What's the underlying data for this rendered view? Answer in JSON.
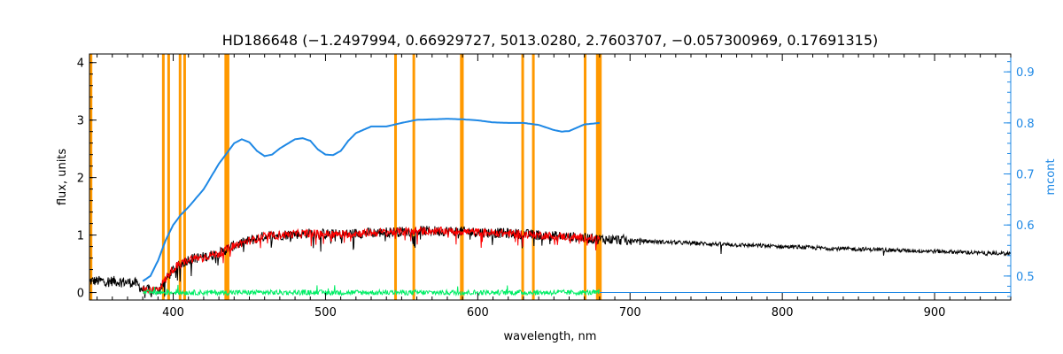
{
  "chart_data": {
    "type": "line",
    "title": "HD186648    (−1.2497994, 0.66929727, 5013.0280, 2.7603707, −0.057300969, 0.17691315)",
    "xlabel": "wavelength, nm",
    "ylabel": "flux, units",
    "y2label": "mcont",
    "xlim": [
      345,
      950
    ],
    "ylim": [
      -0.13,
      4.15
    ],
    "y2lim": [
      0.453,
      0.935
    ],
    "xticks": [
      400,
      500,
      600,
      700,
      800,
      900
    ],
    "yticks": [
      0,
      1,
      2,
      3,
      4
    ],
    "y2ticks": [
      0.5,
      0.6,
      0.7,
      0.8,
      0.9
    ],
    "colors": {
      "observed": "#000000",
      "model": "#ff0000",
      "residual": "#00ee66",
      "mcont": "#1e88e5",
      "masks": "#ff9900",
      "right_axis": "#1e88e5"
    },
    "masked_wavelengths": [
      346,
      393.5,
      397,
      404.5,
      407.5,
      434.5,
      436,
      546,
      558,
      589.2,
      589.9,
      629.5,
      636.5,
      670.5,
      678.5,
      679.5,
      680.5
    ],
    "series": [
      {
        "role": "observed",
        "x": [
          345,
          360,
          375,
          380,
          390,
          400,
          410,
          420,
          430,
          440,
          450,
          460,
          470,
          480,
          490,
          500,
          510,
          520,
          540,
          560,
          580,
          600,
          620,
          640,
          660,
          680,
          700,
          720,
          740,
          760,
          780,
          800,
          820,
          840,
          860,
          880,
          900,
          920,
          935,
          950
        ],
        "y": [
          0.2,
          0.2,
          0.17,
          0.05,
          0.03,
          0.4,
          0.58,
          0.62,
          0.68,
          0.82,
          0.9,
          0.98,
          1.0,
          1.02,
          1.03,
          1.02,
          1.01,
          1.03,
          1.05,
          1.07,
          1.07,
          1.05,
          1.03,
          1.0,
          0.97,
          0.93,
          0.91,
          0.88,
          0.86,
          0.84,
          0.82,
          0.8,
          0.78,
          0.76,
          0.75,
          0.73,
          0.72,
          0.7,
          0.68,
          0.68
        ]
      },
      {
        "role": "model",
        "x": [
          380,
          390,
          400,
          410,
          420,
          430,
          440,
          450,
          460,
          470,
          480,
          490,
          500,
          510,
          520,
          540,
          560,
          580,
          600,
          620,
          640,
          660,
          680
        ],
        "y": [
          0.05,
          0.05,
          0.42,
          0.58,
          0.62,
          0.68,
          0.82,
          0.9,
          0.98,
          1.0,
          1.02,
          1.03,
          1.02,
          1.01,
          1.03,
          1.05,
          1.07,
          1.07,
          1.05,
          1.03,
          1.0,
          0.97,
          0.93
        ]
      },
      {
        "role": "residual",
        "x": [
          380,
          680
        ],
        "y": [
          0.0,
          0.0
        ]
      },
      {
        "role": "mcont",
        "axis": "right",
        "x": [
          380,
          385,
          390,
          395,
          400,
          405,
          410,
          420,
          430,
          440,
          445,
          450,
          455,
          460,
          465,
          470,
          480,
          485,
          490,
          495,
          500,
          505,
          510,
          515,
          520,
          530,
          540,
          550,
          560,
          570,
          580,
          590,
          600,
          610,
          620,
          630,
          640,
          650,
          655,
          660,
          670,
          680
        ],
        "y": [
          0.49,
          0.5,
          0.53,
          0.57,
          0.6,
          0.62,
          0.635,
          0.67,
          0.72,
          0.76,
          0.768,
          0.762,
          0.745,
          0.735,
          0.738,
          0.75,
          0.768,
          0.77,
          0.765,
          0.748,
          0.738,
          0.737,
          0.745,
          0.765,
          0.78,
          0.793,
          0.793,
          0.8,
          0.806,
          0.807,
          0.808,
          0.807,
          0.805,
          0.801,
          0.8,
          0.8,
          0.796,
          0.786,
          0.783,
          0.784,
          0.797,
          0.8
        ]
      }
    ]
  }
}
